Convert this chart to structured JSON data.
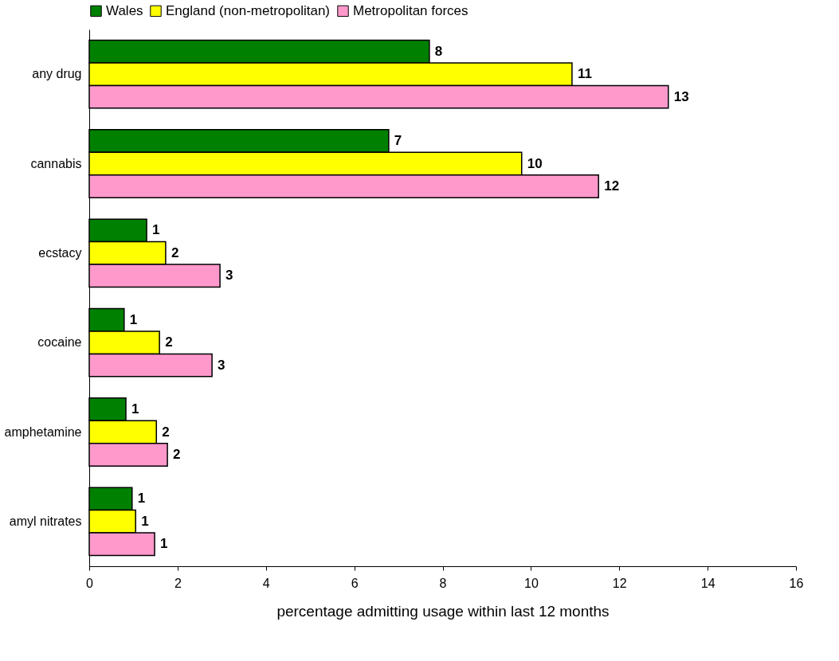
{
  "chart_data": {
    "type": "bar",
    "orientation": "horizontal",
    "xlabel": "percentage admitting usage within last 12 months",
    "categories": [
      "any drug",
      "cannabis",
      "ecstacy",
      "cocaine",
      "amphetamine",
      "amyl nitrates"
    ],
    "series": [
      {
        "name": "Wales",
        "color": "#008000",
        "values": [
          7.7,
          6.78,
          1.3,
          0.79,
          0.83,
          0.97
        ],
        "value_labels": [
          "8",
          "7",
          "1",
          "1",
          "1",
          "1"
        ]
      },
      {
        "name": "England (non-metropolitan)",
        "color": "#ffff00",
        "values": [
          10.93,
          9.79,
          1.73,
          1.59,
          1.52,
          1.05
        ],
        "value_labels": [
          "11",
          "10",
          "2",
          "2",
          "2",
          "1"
        ]
      },
      {
        "name": "Metropolitan forces",
        "color": "#ff99cc",
        "values": [
          13.11,
          11.53,
          2.96,
          2.78,
          1.77,
          1.48
        ],
        "value_labels": [
          "13",
          "12",
          "3",
          "3",
          "2",
          "1"
        ]
      }
    ],
    "xlim": [
      0,
      16
    ],
    "xticks": [
      0,
      2,
      4,
      6,
      8,
      10,
      12,
      14,
      16
    ],
    "grid": false,
    "legend": "top"
  }
}
